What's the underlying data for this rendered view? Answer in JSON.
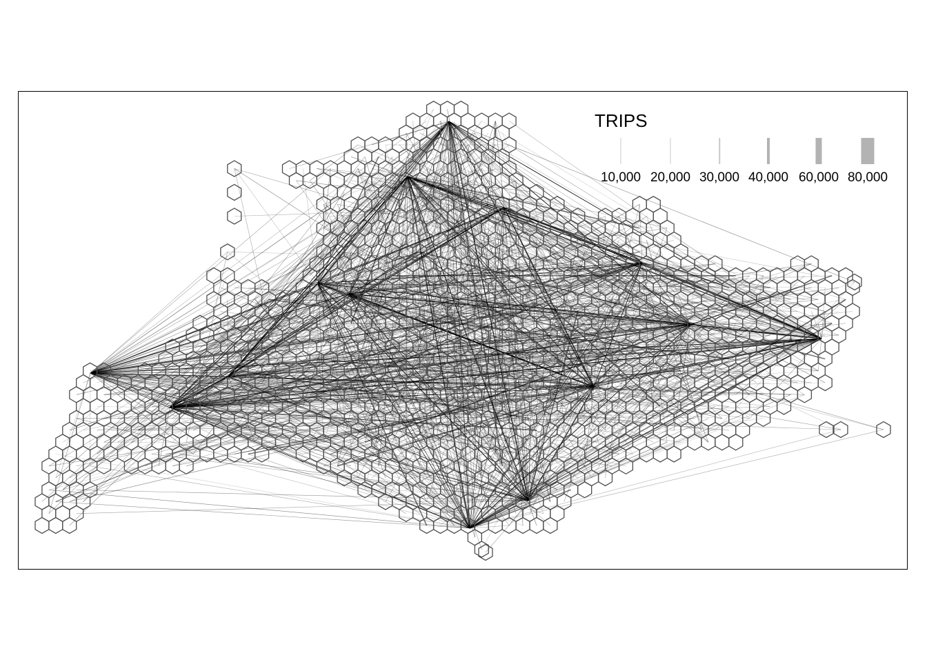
{
  "legend": {
    "title": "TRIPS",
    "items": [
      {
        "label": "10,000",
        "value": 10000
      },
      {
        "label": "20,000",
        "value": 20000
      },
      {
        "label": "30,000",
        "value": 30000
      },
      {
        "label": "40,000",
        "value": 40000
      },
      {
        "label": "60,000",
        "value": 60000
      },
      {
        "label": "80,000",
        "value": 80000
      }
    ]
  },
  "colors": {
    "flow_line": "#000000",
    "legend_bar": "#b3b3b3",
    "hexagon_outline": "#4d4d4d",
    "frame": "#000000",
    "background": "#ffffff"
  },
  "map_symbology": {
    "type": "origin-destination flow map",
    "cells": "hexagonal grid",
    "line_width_encodes": "trips"
  }
}
